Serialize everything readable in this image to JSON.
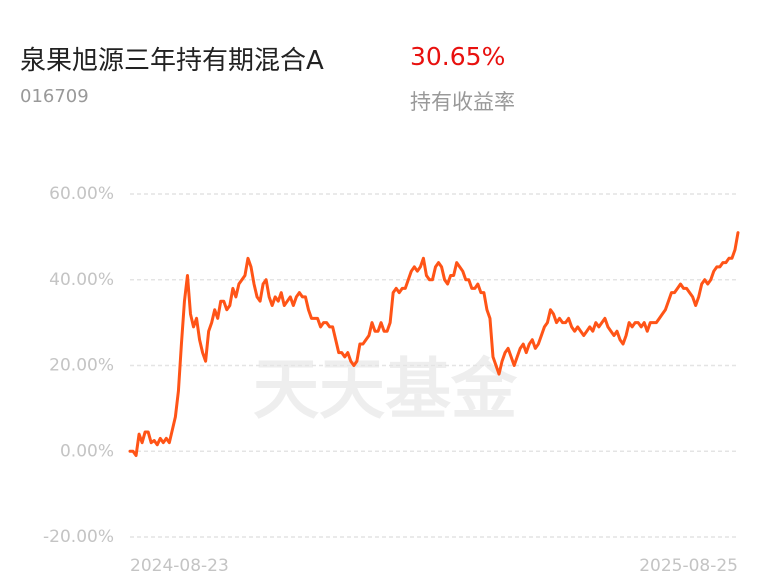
{
  "header": {
    "title": "泉果旭源三年持有期混合A",
    "return_value": "30.65%",
    "code": "016709",
    "return_label": "持有收益率"
  },
  "chart_data": {
    "type": "line",
    "watermark": "天天基金",
    "categories": [
      "2024-08-23",
      null,
      null,
      null,
      null,
      null,
      null,
      null,
      null,
      null,
      null,
      null,
      null,
      null,
      null,
      null,
      null,
      null,
      null,
      null,
      null,
      null,
      null,
      null,
      null,
      null,
      null,
      null,
      null,
      null,
      null,
      null,
      null,
      null,
      null,
      null,
      null,
      null,
      null,
      null,
      null,
      null,
      null,
      null,
      null,
      null,
      null,
      null,
      null,
      null,
      null,
      null,
      null,
      null,
      null,
      null,
      null,
      null,
      null,
      null,
      null,
      null,
      null,
      null,
      null,
      null,
      null,
      null,
      null,
      null,
      null,
      null,
      null,
      null,
      null,
      null,
      null,
      null,
      null,
      null,
      null,
      null,
      null,
      null,
      null,
      null,
      null,
      null,
      null,
      null,
      null,
      null,
      null,
      null,
      null,
      null,
      null,
      null,
      null,
      null,
      null,
      null,
      null,
      null,
      null,
      null,
      null,
      null,
      null,
      null,
      null,
      null,
      null,
      null,
      null,
      null,
      null,
      null,
      null,
      null,
      null,
      null,
      null,
      null,
      null,
      null,
      null,
      null,
      null,
      null,
      null,
      null,
      null,
      null,
      null,
      null,
      null,
      null,
      null,
      null,
      null,
      null,
      null,
      null,
      null,
      null,
      null,
      null,
      null,
      null,
      null,
      null,
      null,
      null,
      null,
      null,
      null,
      null,
      null,
      null,
      null,
      null,
      null,
      null,
      null,
      null,
      null,
      null,
      null,
      null,
      null,
      null,
      null,
      null,
      null,
      null,
      null,
      null,
      null,
      null,
      null,
      null,
      null,
      null,
      null,
      null,
      null,
      null,
      null,
      null,
      null,
      null,
      null,
      null,
      null,
      null,
      null,
      null,
      null,
      null,
      null,
      "2025-08-25"
    ],
    "series": [
      {
        "color": "#ff5417",
        "values": [
          0,
          0,
          -1,
          4,
          2,
          4.5,
          4.5,
          2,
          2.5,
          1.5,
          3,
          2,
          3,
          2,
          5,
          8,
          14,
          25,
          35,
          41,
          32,
          29,
          31,
          26,
          23,
          21,
          28,
          30,
          33,
          31,
          35,
          35,
          33,
          34,
          38,
          36,
          39,
          40,
          41,
          45,
          43,
          39,
          36,
          35,
          39,
          40,
          36,
          34,
          36,
          35,
          37,
          34,
          35,
          36,
          34,
          36,
          37,
          36,
          36,
          33,
          31,
          31,
          31,
          29,
          30,
          30,
          29,
          29,
          26,
          23,
          23,
          22,
          23,
          21,
          20,
          21,
          25,
          25,
          26,
          27,
          30,
          28,
          28,
          30,
          28,
          28,
          30,
          37,
          38,
          37,
          38,
          38,
          40,
          42,
          43,
          42,
          43,
          45,
          41,
          40,
          40,
          43,
          44,
          43,
          40,
          39,
          41,
          41,
          44,
          43,
          42,
          40,
          40,
          38,
          38,
          39,
          37,
          37,
          33,
          31,
          22,
          20,
          18,
          21,
          23,
          24,
          22,
          20,
          22,
          24,
          25,
          23,
          25,
          26,
          24,
          25,
          27,
          29,
          30,
          33,
          32,
          30,
          31,
          30,
          30,
          31,
          29,
          28,
          29,
          28,
          27,
          28,
          29,
          28,
          30,
          29,
          30,
          31,
          29,
          28,
          27,
          28,
          26,
          25,
          27,
          30,
          29,
          30,
          30,
          29,
          30,
          28,
          30,
          30,
          30,
          31,
          32,
          33,
          35,
          37,
          37,
          38,
          39,
          38,
          38,
          37,
          36,
          34,
          36,
          39,
          40,
          39,
          40,
          42,
          43,
          43,
          44,
          44,
          45,
          45,
          47,
          51
        ]
      }
    ],
    "ylim": [
      -20,
      60
    ],
    "yticks": [
      {
        "value": -20,
        "label": "-20.00%"
      },
      {
        "value": 0,
        "label": "0.00%"
      },
      {
        "value": 20,
        "label": "20.00%"
      },
      {
        "value": 40,
        "label": "40.00%"
      },
      {
        "value": 60,
        "label": "60.00%"
      }
    ],
    "grid": true
  }
}
